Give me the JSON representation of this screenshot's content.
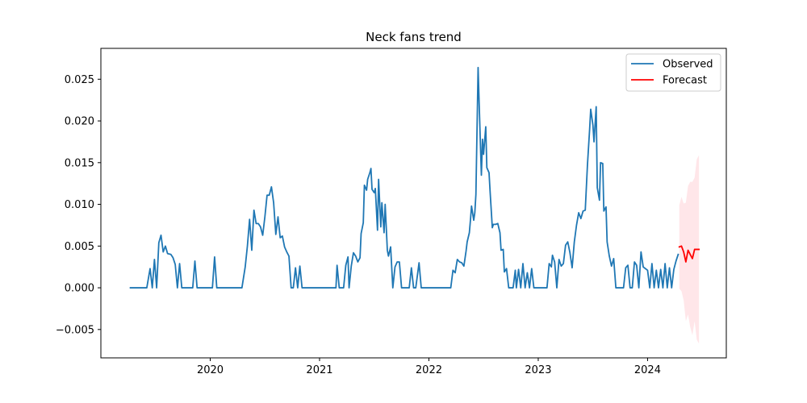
{
  "chart_data": {
    "type": "line",
    "title": "Neck fans trend",
    "xlabel": "",
    "ylabel": "",
    "xlim": [
      2019.0,
      2024.72
    ],
    "ylim": [
      -0.0084,
      0.0287
    ],
    "x_ticks": [
      {
        "value": 2020,
        "label": "2020"
      },
      {
        "value": 2021,
        "label": "2021"
      },
      {
        "value": 2022,
        "label": "2022"
      },
      {
        "value": 2023,
        "label": "2023"
      },
      {
        "value": 2024,
        "label": "2024"
      }
    ],
    "y_ticks": [
      {
        "value": -0.005,
        "label": "−0.005"
      },
      {
        "value": 0.0,
        "label": "0.000"
      },
      {
        "value": 0.005,
        "label": "0.005"
      },
      {
        "value": 0.01,
        "label": "0.010"
      },
      {
        "value": 0.015,
        "label": "0.015"
      },
      {
        "value": 0.02,
        "label": "0.020"
      },
      {
        "value": 0.025,
        "label": "0.025"
      }
    ],
    "grid": false,
    "legend": {
      "position": "top-right",
      "entries": [
        "Observed",
        "Forecast"
      ]
    },
    "series": [
      {
        "name": "Observed",
        "color": "#1f77b4",
        "points": [
          [
            2019.27,
            0.0
          ],
          [
            2019.3,
            0.0
          ],
          [
            2019.34,
            0.0
          ],
          [
            2019.38,
            0.0
          ],
          [
            2019.42,
            0.0
          ],
          [
            2019.45,
            0.0023
          ],
          [
            2019.47,
            0.0
          ],
          [
            2019.49,
            0.0034
          ],
          [
            2019.51,
            0.0
          ],
          [
            2019.53,
            0.0054
          ],
          [
            2019.55,
            0.0063
          ],
          [
            2019.57,
            0.0043
          ],
          [
            2019.59,
            0.005
          ],
          [
            2019.61,
            0.0041
          ],
          [
            2019.64,
            0.004
          ],
          [
            2019.66,
            0.0036
          ],
          [
            2019.68,
            0.0028
          ],
          [
            2019.7,
            0.0
          ],
          [
            2019.72,
            0.0029
          ],
          [
            2019.74,
            0.0
          ],
          [
            2019.78,
            0.0
          ],
          [
            2019.82,
            0.0
          ],
          [
            2019.84,
            0.0
          ],
          [
            2019.86,
            0.0032
          ],
          [
            2019.88,
            0.0
          ],
          [
            2019.92,
            0.0
          ],
          [
            2019.96,
            0.0
          ],
          [
            2020.0,
            0.0
          ],
          [
            2020.02,
            0.0
          ],
          [
            2020.04,
            0.0037
          ],
          [
            2020.06,
            0.0
          ],
          [
            2020.1,
            0.0
          ],
          [
            2020.15,
            0.0
          ],
          [
            2020.2,
            0.0
          ],
          [
            2020.25,
            0.0
          ],
          [
            2020.29,
            0.0
          ],
          [
            2020.32,
            0.0025
          ],
          [
            2020.34,
            0.005
          ],
          [
            2020.36,
            0.0082
          ],
          [
            2020.38,
            0.0045
          ],
          [
            2020.4,
            0.0093
          ],
          [
            2020.42,
            0.0077
          ],
          [
            2020.44,
            0.0077
          ],
          [
            2020.46,
            0.0073
          ],
          [
            2020.48,
            0.0063
          ],
          [
            2020.5,
            0.0085
          ],
          [
            2020.52,
            0.0111
          ],
          [
            2020.54,
            0.0111
          ],
          [
            2020.56,
            0.0121
          ],
          [
            2020.58,
            0.0102
          ],
          [
            2020.6,
            0.0064
          ],
          [
            2020.62,
            0.0085
          ],
          [
            2020.64,
            0.006
          ],
          [
            2020.66,
            0.0062
          ],
          [
            2020.68,
            0.0049
          ],
          [
            2020.7,
            0.0043
          ],
          [
            2020.72,
            0.0038
          ],
          [
            2020.74,
            0.0
          ],
          [
            2020.76,
            0.0
          ],
          [
            2020.78,
            0.0024
          ],
          [
            2020.8,
            0.0
          ],
          [
            2020.82,
            0.0026
          ],
          [
            2020.84,
            0.0
          ],
          [
            2020.9,
            0.0
          ],
          [
            2020.95,
            0.0
          ],
          [
            2021.0,
            0.0
          ],
          [
            2021.05,
            0.0
          ],
          [
            2021.1,
            0.0
          ],
          [
            2021.13,
            0.0
          ],
          [
            2021.15,
            0.0
          ],
          [
            2021.16,
            0.0027
          ],
          [
            2021.18,
            0.0
          ],
          [
            2021.22,
            0.0
          ],
          [
            2021.24,
            0.0027
          ],
          [
            2021.26,
            0.0037
          ],
          [
            2021.27,
            0.0
          ],
          [
            2021.29,
            0.0026
          ],
          [
            2021.31,
            0.0042
          ],
          [
            2021.33,
            0.0038
          ],
          [
            2021.35,
            0.0031
          ],
          [
            2021.37,
            0.0036
          ],
          [
            2021.38,
            0.0065
          ],
          [
            2021.4,
            0.0078
          ],
          [
            2021.41,
            0.0123
          ],
          [
            2021.43,
            0.0117
          ],
          [
            2021.44,
            0.013
          ],
          [
            2021.46,
            0.0138
          ],
          [
            2021.47,
            0.0143
          ],
          [
            2021.48,
            0.0118
          ],
          [
            2021.5,
            0.0114
          ],
          [
            2021.51,
            0.0119
          ],
          [
            2021.53,
            0.0069
          ],
          [
            2021.54,
            0.013
          ],
          [
            2021.56,
            0.0073
          ],
          [
            2021.57,
            0.0102
          ],
          [
            2021.59,
            0.0066
          ],
          [
            2021.6,
            0.01
          ],
          [
            2021.62,
            0.0045
          ],
          [
            2021.63,
            0.0038
          ],
          [
            2021.65,
            0.0049
          ],
          [
            2021.67,
            0.0
          ],
          [
            2021.69,
            0.0025
          ],
          [
            2021.71,
            0.0031
          ],
          [
            2021.73,
            0.0031
          ],
          [
            2021.75,
            0.0
          ],
          [
            2021.79,
            0.0
          ],
          [
            2021.82,
            0.0
          ],
          [
            2021.84,
            0.0024
          ],
          [
            2021.86,
            0.0
          ],
          [
            2021.88,
            0.0
          ],
          [
            2021.91,
            0.003
          ],
          [
            2021.93,
            0.0
          ],
          [
            2021.97,
            0.0
          ],
          [
            2022.02,
            0.0
          ],
          [
            2022.07,
            0.0
          ],
          [
            2022.12,
            0.0
          ],
          [
            2022.17,
            0.0
          ],
          [
            2022.2,
            0.0
          ],
          [
            2022.22,
            0.0021
          ],
          [
            2022.24,
            0.0018
          ],
          [
            2022.26,
            0.0034
          ],
          [
            2022.28,
            0.0031
          ],
          [
            2022.3,
            0.003
          ],
          [
            2022.32,
            0.0026
          ],
          [
            2022.34,
            0.0044
          ],
          [
            2022.35,
            0.0055
          ],
          [
            2022.37,
            0.0066
          ],
          [
            2022.38,
            0.0081
          ],
          [
            2022.39,
            0.0098
          ],
          [
            2022.41,
            0.0081
          ],
          [
            2022.42,
            0.009
          ],
          [
            2022.43,
            0.0112
          ],
          [
            2022.45,
            0.0264
          ],
          [
            2022.46,
            0.022
          ],
          [
            2022.48,
            0.0135
          ],
          [
            2022.49,
            0.0178
          ],
          [
            2022.5,
            0.016
          ],
          [
            2022.52,
            0.0193
          ],
          [
            2022.53,
            0.0144
          ],
          [
            2022.55,
            0.0138
          ],
          [
            2022.56,
            0.0115
          ],
          [
            2022.58,
            0.0072
          ],
          [
            2022.59,
            0.0076
          ],
          [
            2022.61,
            0.0076
          ],
          [
            2022.63,
            0.0077
          ],
          [
            2022.65,
            0.0066
          ],
          [
            2022.66,
            0.0045
          ],
          [
            2022.68,
            0.0046
          ],
          [
            2022.69,
            0.0019
          ],
          [
            2022.71,
            0.0023
          ],
          [
            2022.73,
            0.0
          ],
          [
            2022.75,
            0.0
          ],
          [
            2022.77,
            0.0
          ],
          [
            2022.79,
            0.0021
          ],
          [
            2022.8,
            0.0
          ],
          [
            2022.82,
            0.0022
          ],
          [
            2022.84,
            0.0
          ],
          [
            2022.86,
            0.0029
          ],
          [
            2022.88,
            0.0
          ],
          [
            2022.9,
            0.0018
          ],
          [
            2022.92,
            0.0
          ],
          [
            2022.94,
            0.0023
          ],
          [
            2022.96,
            0.0
          ],
          [
            2023.0,
            0.0
          ],
          [
            2023.04,
            0.0
          ],
          [
            2023.08,
            0.0
          ],
          [
            2023.1,
            0.0029
          ],
          [
            2023.12,
            0.0025
          ],
          [
            2023.13,
            0.0039
          ],
          [
            2023.15,
            0.0031
          ],
          [
            2023.17,
            0.0
          ],
          [
            2023.19,
            0.0034
          ],
          [
            2023.21,
            0.0026
          ],
          [
            2023.23,
            0.0029
          ],
          [
            2023.25,
            0.0051
          ],
          [
            2023.27,
            0.0055
          ],
          [
            2023.29,
            0.0042
          ],
          [
            2023.31,
            0.0024
          ],
          [
            2023.33,
            0.0055
          ],
          [
            2023.35,
            0.0075
          ],
          [
            2023.37,
            0.009
          ],
          [
            2023.39,
            0.0083
          ],
          [
            2023.41,
            0.0092
          ],
          [
            2023.43,
            0.0093
          ],
          [
            2023.45,
            0.0147
          ],
          [
            2023.47,
            0.019
          ],
          [
            2023.48,
            0.0214
          ],
          [
            2023.5,
            0.0195
          ],
          [
            2023.51,
            0.0175
          ],
          [
            2023.53,
            0.0217
          ],
          [
            2023.54,
            0.012
          ],
          [
            2023.56,
            0.0105
          ],
          [
            2023.57,
            0.015
          ],
          [
            2023.59,
            0.0149
          ],
          [
            2023.6,
            0.0092
          ],
          [
            2023.62,
            0.0097
          ],
          [
            2023.63,
            0.0055
          ],
          [
            2023.65,
            0.0038
          ],
          [
            2023.67,
            0.0026
          ],
          [
            2023.69,
            0.0035
          ],
          [
            2023.71,
            0.0
          ],
          [
            2023.75,
            0.0
          ],
          [
            2023.78,
            0.0
          ],
          [
            2023.8,
            0.0024
          ],
          [
            2023.82,
            0.0027
          ],
          [
            2023.84,
            0.0
          ],
          [
            2023.86,
            0.0
          ],
          [
            2023.88,
            0.0031
          ],
          [
            2023.9,
            0.0027
          ],
          [
            2023.92,
            0.0
          ],
          [
            2023.94,
            0.0043
          ],
          [
            2023.96,
            0.0025
          ],
          [
            2023.98,
            0.0023
          ],
          [
            2024.0,
            0.0021
          ],
          [
            2024.02,
            0.0
          ],
          [
            2024.04,
            0.0029
          ],
          [
            2024.06,
            0.0
          ],
          [
            2024.08,
            0.0021
          ],
          [
            2024.1,
            0.0
          ],
          [
            2024.12,
            0.0022
          ],
          [
            2024.14,
            0.0
          ],
          [
            2024.16,
            0.0029
          ],
          [
            2024.18,
            0.0
          ],
          [
            2024.2,
            0.0024
          ],
          [
            2024.22,
            0.0
          ],
          [
            2024.24,
            0.0022
          ],
          [
            2024.26,
            0.0032
          ],
          [
            2024.28,
            0.004
          ]
        ]
      },
      {
        "name": "Forecast",
        "color": "#ff0000",
        "points": [
          [
            2024.29,
            0.0049
          ],
          [
            2024.31,
            0.005
          ],
          [
            2024.33,
            0.0043
          ],
          [
            2024.35,
            0.0031
          ],
          [
            2024.37,
            0.0045
          ],
          [
            2024.39,
            0.004
          ],
          [
            2024.41,
            0.0035
          ],
          [
            2024.43,
            0.0046
          ],
          [
            2024.45,
            0.0046
          ],
          [
            2024.47,
            0.0046
          ]
        ],
        "band": {
          "color": "#ffb6c1",
          "upper": [
            0.0099,
            0.0109,
            0.0101,
            0.0102,
            0.0122,
            0.0127,
            0.0127,
            0.0132,
            0.0154,
            0.0159
          ],
          "lower": [
            -0.0001,
            -0.0004,
            -0.0015,
            -0.004,
            -0.0032,
            -0.0047,
            -0.0057,
            -0.004,
            -0.0062,
            -0.0067
          ]
        }
      }
    ]
  }
}
